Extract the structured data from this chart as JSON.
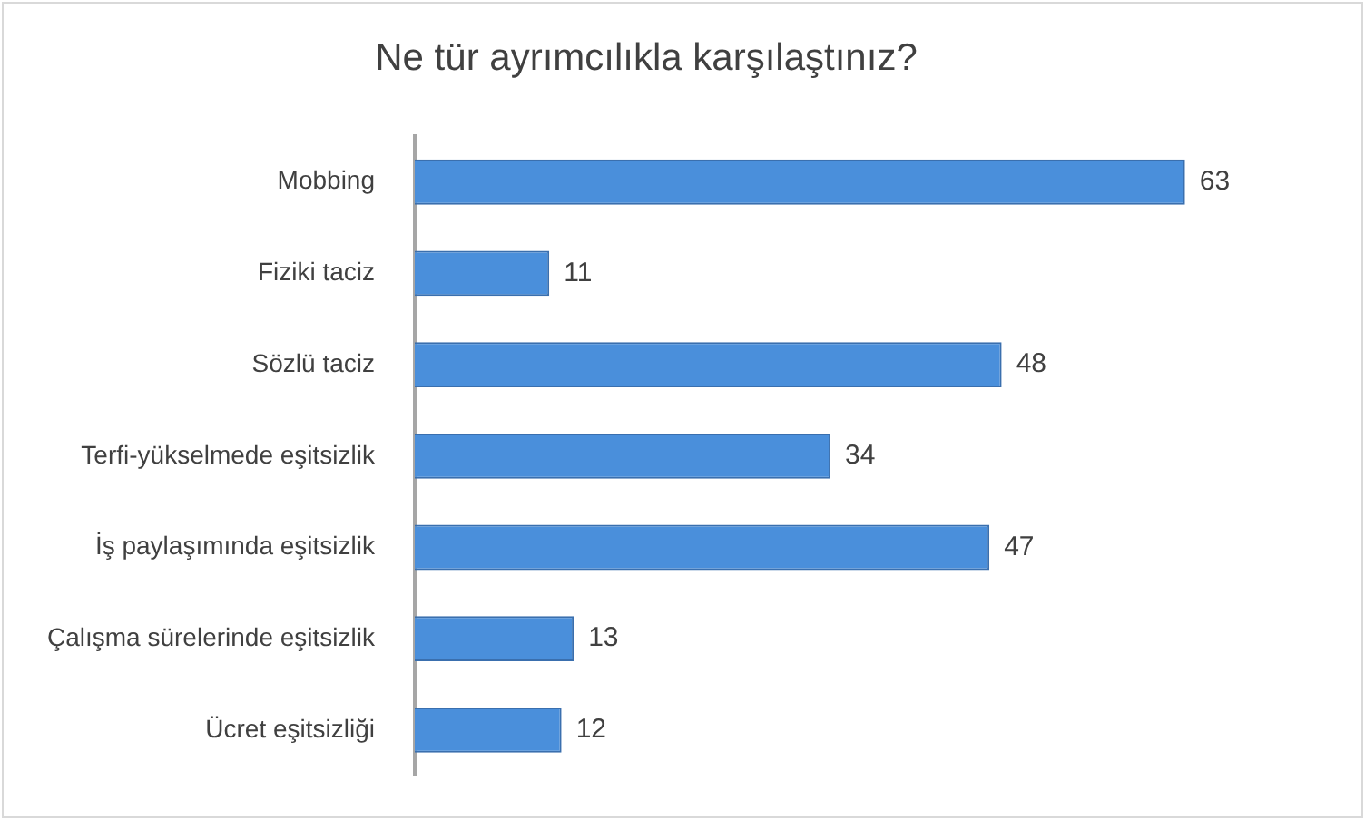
{
  "chart_data": {
    "type": "bar",
    "orientation": "horizontal",
    "title": "Ne tür ayrımcılıkla karşılaştınız?",
    "categories": [
      "Mobbing",
      "Fiziki taciz",
      "Sözlü taciz",
      "Terfi-yükselmede eşitsizlik",
      "İş paylaşımında eşitsizlik",
      "Çalışma sürelerinde eşitsizlik",
      "Ücret eşitsizliği"
    ],
    "values": [
      63,
      11,
      48,
      34,
      47,
      13,
      12
    ],
    "color": "#4a8fdb",
    "data_labels": true,
    "legend": false,
    "tick_labels": "y"
  }
}
